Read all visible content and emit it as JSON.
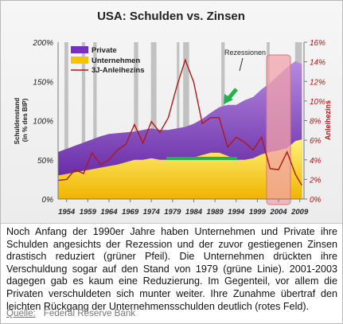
{
  "chart_data": {
    "type": "area",
    "title": "USA: Schulden vs. Zinsen",
    "ylabel_left": "Schuldenstand (in % des BIP)",
    "ylabel_right": "Anleihezins",
    "y_left_ticks": [
      "0%",
      "50%",
      "100%",
      "150%",
      "200%"
    ],
    "y_left_lim": [
      0,
      200
    ],
    "y_right_ticks": [
      "0%",
      "2%",
      "4%",
      "6%",
      "8%",
      "10%",
      "12%",
      "14%",
      "16%"
    ],
    "y_right_lim": [
      0,
      16
    ],
    "x_ticks": [
      "1954",
      "1959",
      "1964",
      "1969",
      "1974",
      "1979",
      "1984",
      "1989",
      "1994",
      "1999",
      "2004",
      "2009"
    ],
    "x_lim": [
      1952,
      2010
    ],
    "legend": [
      "Private",
      "Unternehmen",
      "3J-Anleihezins"
    ],
    "rezessionen_label": "Rezessionen",
    "recessions": [
      [
        1953.5,
        1954.4
      ],
      [
        1957.6,
        1958.4
      ],
      [
        1960.3,
        1961.1
      ],
      [
        1969.9,
        1970.9
      ],
      [
        1973.9,
        1975.2
      ],
      [
        1980.0,
        1980.6
      ],
      [
        1981.5,
        1982.9
      ],
      [
        1990.5,
        1991.3
      ],
      [
        2001.2,
        2001.9
      ],
      [
        2007.9,
        2009.5
      ]
    ],
    "x": [
      1952,
      1954,
      1956,
      1958,
      1960,
      1962,
      1964,
      1966,
      1968,
      1970,
      1972,
      1974,
      1976,
      1978,
      1980,
      1982,
      1984,
      1986,
      1988,
      1990,
      1992,
      1994,
      1996,
      1998,
      2000,
      2002,
      2004,
      2006,
      2008,
      2009.5
    ],
    "series": [
      {
        "name": "Unternehmen",
        "values": [
          30,
          32,
          34,
          36,
          38,
          40,
          42,
          44,
          47,
          50,
          50,
          52,
          50,
          50,
          50,
          51,
          53,
          56,
          59,
          59,
          55,
          50,
          50,
          52,
          57,
          60,
          62,
          65,
          74,
          76
        ]
      },
      {
        "name": "Private",
        "values": [
          60,
          64,
          68,
          72,
          76,
          80,
          83,
          84,
          85,
          86,
          88,
          90,
          88,
          88,
          90,
          92,
          96,
          102,
          110,
          117,
          120,
          120,
          126,
          130,
          140,
          148,
          158,
          168,
          176,
          172
        ]
      },
      {
        "name": "3J-Anleihezins",
        "values": [
          1.9,
          2.0,
          3.0,
          2.6,
          4.7,
          3.5,
          4.0,
          5.0,
          5.6,
          7.6,
          5.7,
          7.9,
          6.8,
          8.3,
          11.5,
          14.2,
          11.9,
          7.7,
          8.3,
          8.3,
          5.3,
          6.3,
          5.8,
          5.0,
          6.3,
          3.1,
          3.0,
          4.8,
          2.5,
          1.4
        ]
      }
    ]
  },
  "caption": "Noch Anfang der 1990er Jahre haben Unternehmen und Private ihre Schulden angesichts der Rezession und der zuvor gestiegenen Zinsen drastisch reduziert (grüner Pfeil). Die Unternehmen drückten ihre Verschuldung sogar auf den Stand von 1979 (grüne Linie). 2001-2003 dagegen gab es kaum eine Reduzierung. Im Gegenteil, vor allem die Privaten verschuldeten sich munter weiter. Ihre Zunahme übertraf den leichten Rückgang der Unternehmensschulden deutlich (rotes Feld).",
  "source": {
    "label": "Quelle:",
    "text": "Federal Reserve Bank"
  },
  "colors": {
    "private": "#7b2fbe",
    "unternehmen": "#f5c400",
    "rate": "#b01818",
    "recession": "#b8b8b8",
    "green": "#22b14c",
    "red_field": "#f2a3a9"
  }
}
